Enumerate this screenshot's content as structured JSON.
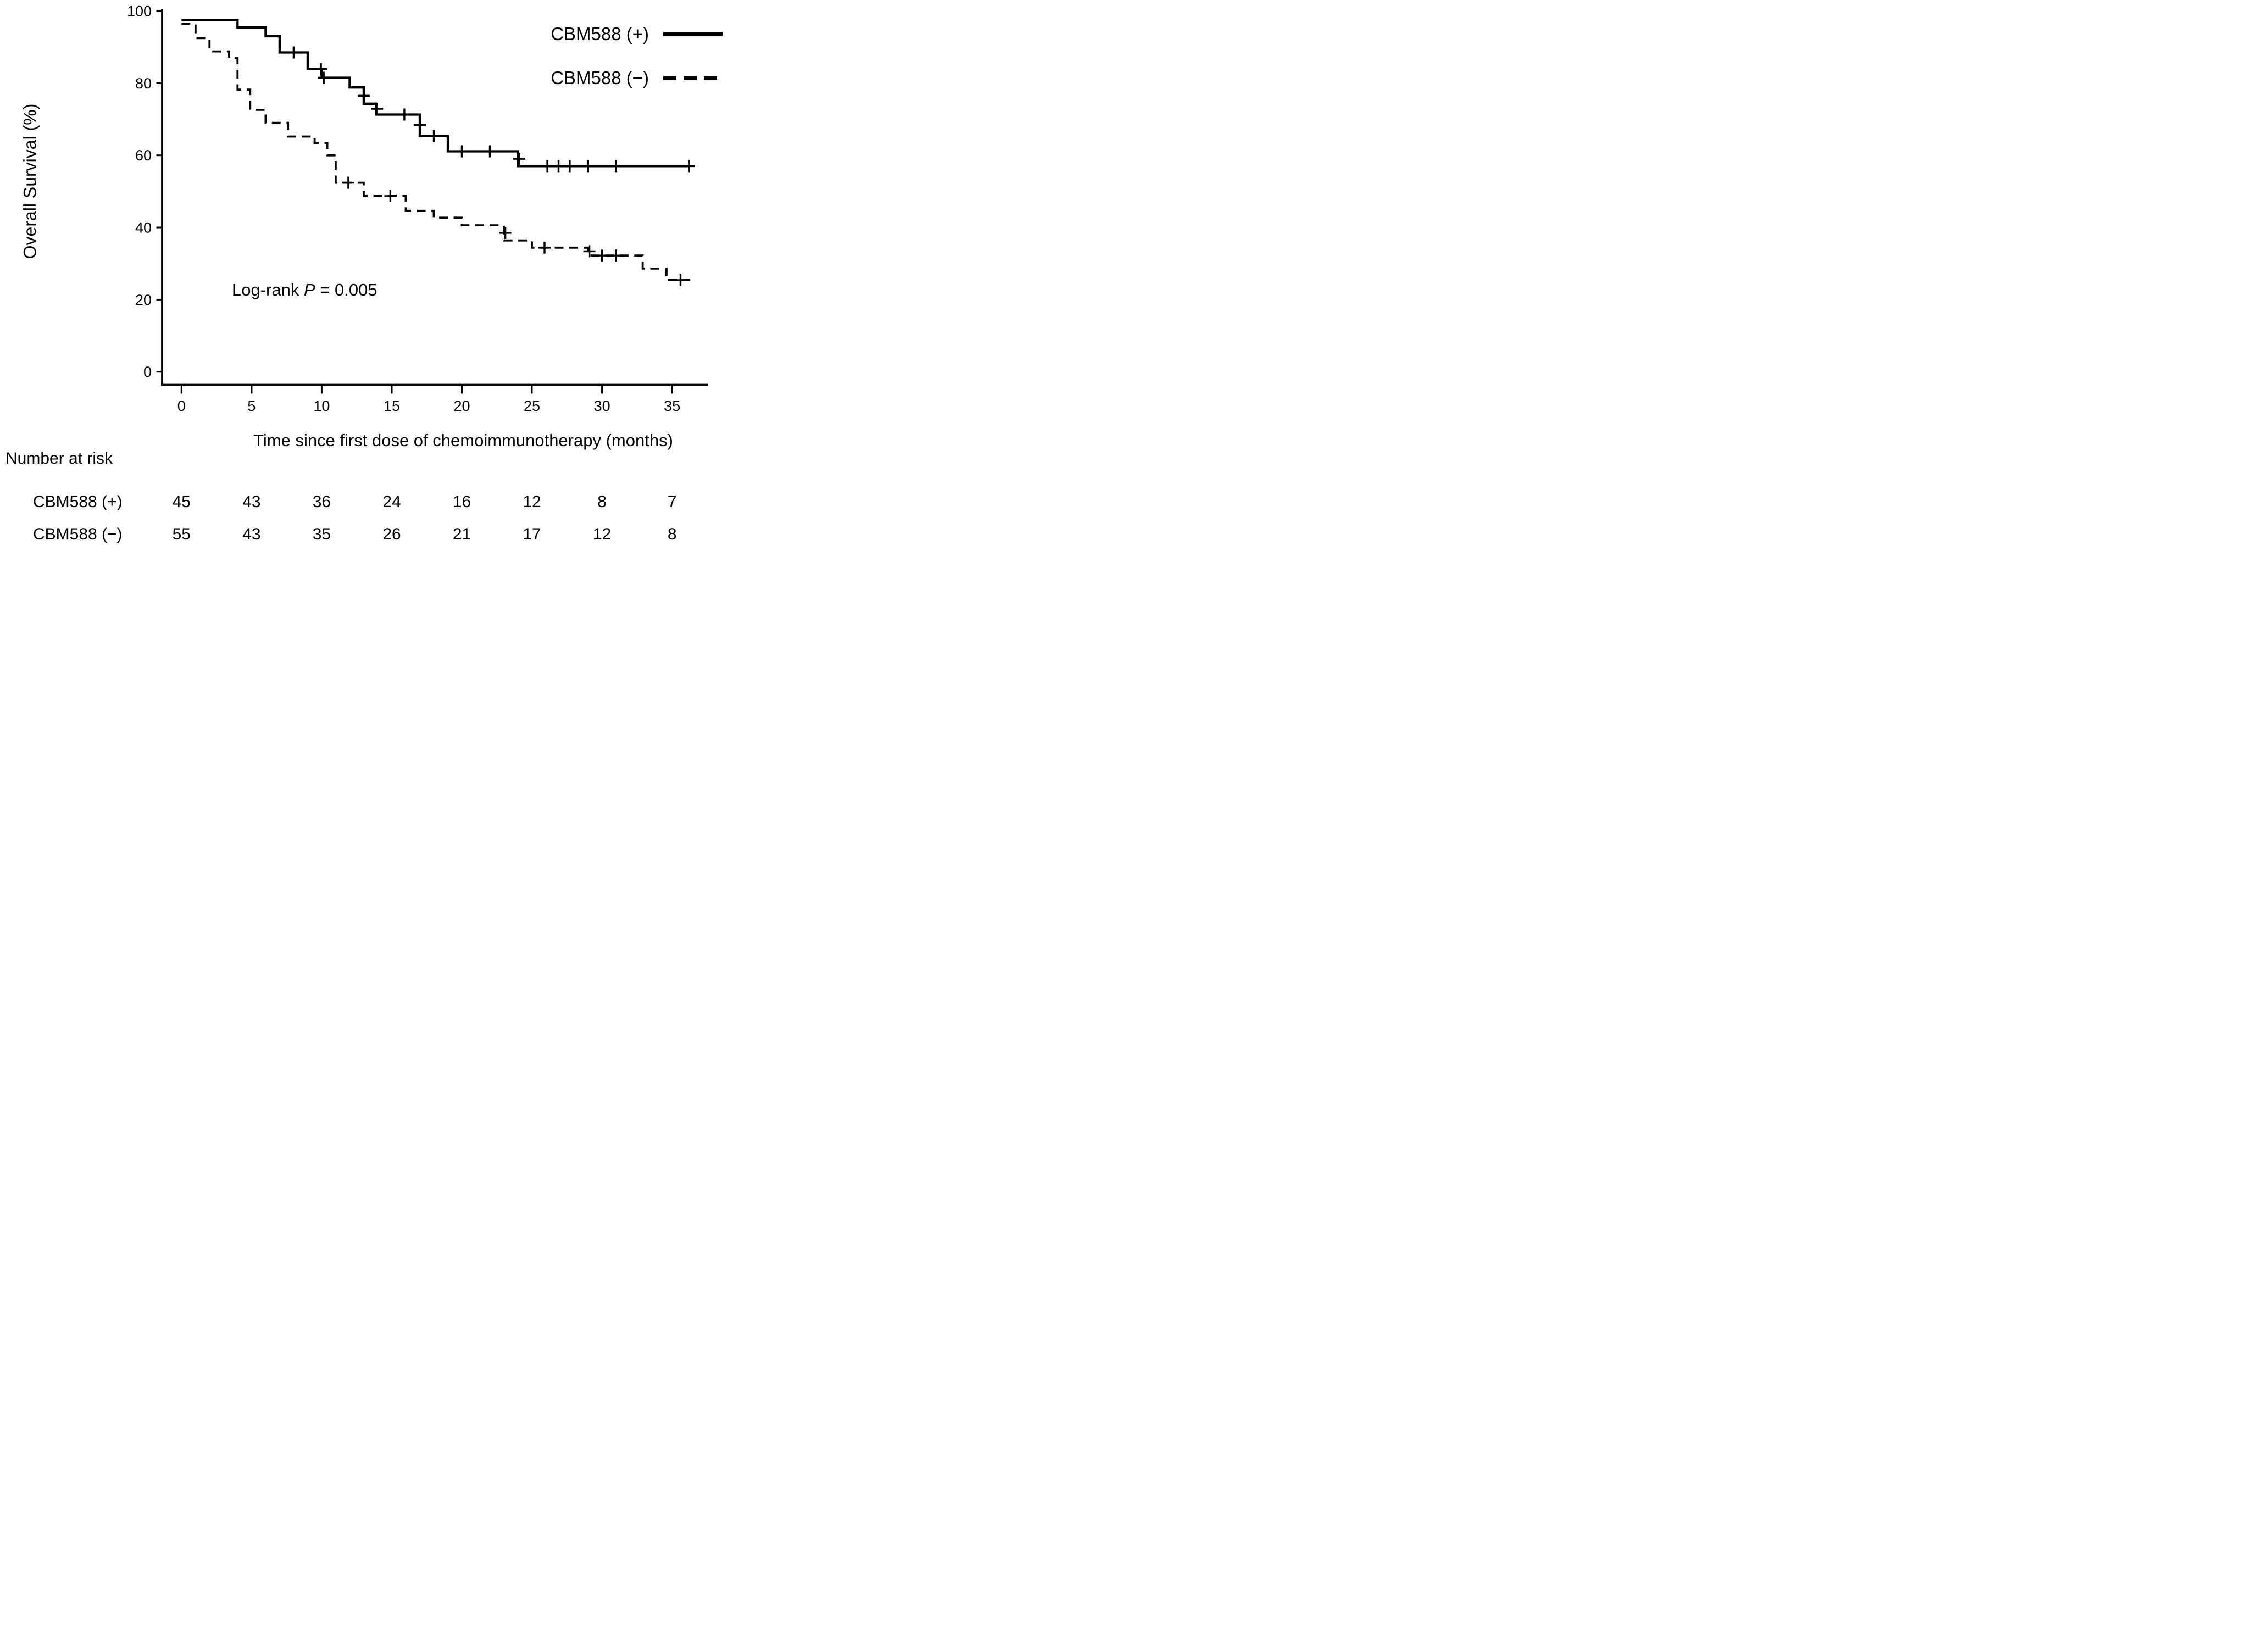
{
  "figure_title": "",
  "chart_data": {
    "type": "line",
    "subtype": "kaplan-meier-step",
    "title": "",
    "xlabel": "Time since first dose of chemoimmunotherapy (months)",
    "ylabel": "Overall Survival (%)",
    "xlim": [
      0,
      37.5
    ],
    "ylim": [
      0,
      100
    ],
    "grid": false,
    "legend_position": "top-right",
    "xticks": [
      0,
      5,
      10,
      15,
      20,
      25,
      30,
      35
    ],
    "yticks": [
      0,
      20,
      40,
      60,
      80,
      100
    ],
    "annotation": {
      "prefix": "Log-rank ",
      "stat": "P",
      "rest": " = 0.005"
    },
    "colors": {
      "curve": "#000000",
      "background": "#ffffff"
    },
    "series": [
      {
        "name": "CBM588 (+)",
        "line_style": "solid",
        "steps": [
          [
            0,
            97.5
          ],
          [
            4,
            95.4
          ],
          [
            6,
            93.0
          ],
          [
            7,
            88.5
          ],
          [
            9,
            83.9
          ],
          [
            10,
            81.5
          ],
          [
            12,
            78.8
          ],
          [
            13,
            74.3
          ],
          [
            13.9,
            71.3
          ],
          [
            17,
            65.3
          ],
          [
            19,
            61.1
          ],
          [
            24,
            57.0
          ]
        ],
        "end_time": 36.3,
        "censors": [
          [
            8,
            88.5
          ],
          [
            9.95,
            83.9
          ],
          [
            10.15,
            81.5
          ],
          [
            13,
            76.5
          ],
          [
            13.95,
            72.9
          ],
          [
            15.9,
            71.3
          ],
          [
            17,
            68.4
          ],
          [
            18,
            65.3
          ],
          [
            20,
            61.1
          ],
          [
            22,
            61.1
          ],
          [
            24.1,
            59.0
          ],
          [
            26.1,
            57.0
          ],
          [
            26.9,
            57.0
          ],
          [
            27.7,
            57.0
          ],
          [
            29,
            57.0
          ],
          [
            31,
            57.0
          ],
          [
            36.2,
            57.0
          ]
        ]
      },
      {
        "name": "CBM588 (−)",
        "line_style": "dashed",
        "steps": [
          [
            0,
            96.4
          ],
          [
            1,
            92.5
          ],
          [
            2,
            88.8
          ],
          [
            3.4,
            86.9
          ],
          [
            4,
            78.2
          ],
          [
            4.9,
            72.6
          ],
          [
            6,
            69.0
          ],
          [
            7.6,
            65.2
          ],
          [
            9.5,
            63.4
          ],
          [
            10.4,
            60.0
          ],
          [
            11,
            52.4
          ],
          [
            13,
            48.7
          ],
          [
            16,
            44.6
          ],
          [
            18,
            42.7
          ],
          [
            20,
            40.6
          ],
          [
            23,
            36.4
          ],
          [
            25,
            34.4
          ],
          [
            29,
            32.2
          ],
          [
            32.9,
            28.6
          ],
          [
            34.6,
            25.4
          ]
        ],
        "end_time": 36.3,
        "censors": [
          [
            11.9,
            52.4
          ],
          [
            14.9,
            48.7
          ],
          [
            23.1,
            38.5
          ],
          [
            25.9,
            34.4
          ],
          [
            29.1,
            33.4
          ],
          [
            30,
            32.2
          ],
          [
            31,
            32.2
          ],
          [
            35.6,
            25.4
          ]
        ]
      }
    ],
    "risk_table": {
      "title": "Number at risk",
      "times": [
        0,
        5,
        10,
        15,
        20,
        25,
        30,
        35
      ],
      "rows": [
        {
          "label": "CBM588 (+)",
          "values": [
            45,
            43,
            36,
            24,
            16,
            12,
            8,
            7
          ]
        },
        {
          "label": "CBM588 (−)",
          "values": [
            55,
            43,
            35,
            26,
            21,
            17,
            12,
            8
          ]
        }
      ]
    }
  }
}
